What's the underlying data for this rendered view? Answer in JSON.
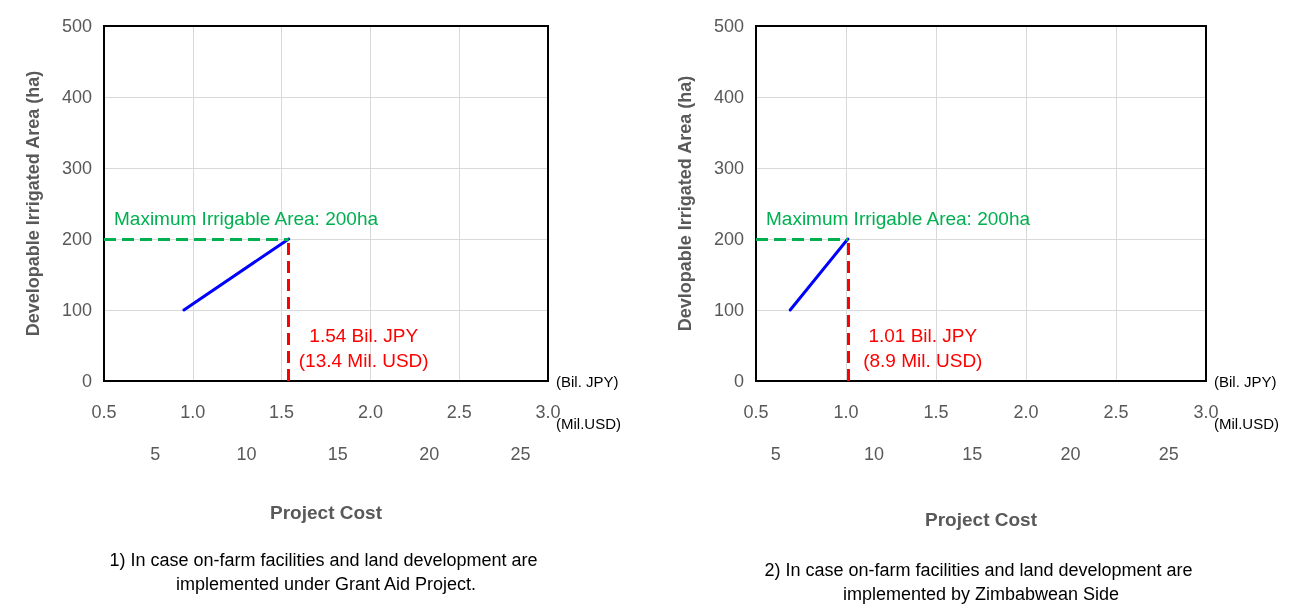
{
  "chart_data": [
    {
      "type": "line",
      "x": [
        0.95,
        1.54
      ],
      "values": [
        100,
        200
      ],
      "color": "#0000ff",
      "xlim": [
        0.5,
        3.0
      ],
      "xticks": [
        {
          "value": 0.5,
          "label": "0.5"
        },
        {
          "value": 1.0,
          "label": "1.0"
        },
        {
          "value": 1.5,
          "label": "1.5"
        },
        {
          "value": 2.0,
          "label": "2.0"
        },
        {
          "value": 2.5,
          "label": "2.5"
        },
        {
          "value": 3.0,
          "label": "3.0"
        }
      ],
      "xlabel": "(Bil. JPY)",
      "x2lim": [
        2.2,
        26.5
      ],
      "x2ticks": [
        5,
        10,
        15,
        20,
        25
      ],
      "x2label": "(Mil.USD)",
      "ylim": [
        0,
        500
      ],
      "yticks": [
        0,
        100,
        200,
        300,
        400,
        500
      ],
      "ylabel": "Developable Irrigated Area (ha)",
      "grid": true,
      "marker": "none",
      "line_style": "solid",
      "ref_lines": [
        {
          "axis": "y",
          "value": 200,
          "label": "Maximum Irrigable Area: 200ha",
          "color": "#00b050",
          "line_style": "dashed"
        },
        {
          "axis": "x",
          "value": 1.54,
          "label": "1.54 Bil. JPY\n(13.4 Mil. USD)",
          "color": "#ff0000",
          "line_style": "dashed"
        }
      ],
      "annotations": [
        "Project Cost",
        "1) In case on-farm facilities and land development are implemented under Grant Aid Project."
      ]
    },
    {
      "type": "line",
      "x": [
        0.69,
        1.01
      ],
      "values": [
        100,
        200
      ],
      "color": "#0000ff",
      "xlim": [
        0.5,
        3.0
      ],
      "xticks": [
        {
          "value": 0.5,
          "label": "0.5"
        },
        {
          "value": 1.0,
          "label": "1.0"
        },
        {
          "value": 1.5,
          "label": "1.5"
        },
        {
          "value": 2.0,
          "label": "2.0"
        },
        {
          "value": 2.5,
          "label": "2.5"
        },
        {
          "value": 3.0,
          "label": "3.0"
        }
      ],
      "xlabel": "(Bil. JPY)",
      "x2lim": [
        4.0,
        26.9
      ],
      "x2ticks": [
        5,
        10,
        15,
        20,
        25
      ],
      "x2label": "(Mil.USD)",
      "ylim": [
        0,
        500
      ],
      "yticks": [
        0,
        100,
        200,
        300,
        400,
        500
      ],
      "ylabel": "Devlopable Irrigated Area (ha)",
      "grid": true,
      "marker": "none",
      "line_style": "solid",
      "ref_lines": [
        {
          "axis": "y",
          "value": 200,
          "label": "Maximum Irrigable Area: 200ha",
          "color": "#00b050",
          "line_style": "dashed"
        },
        {
          "axis": "x",
          "value": 1.01,
          "label": "1.01 Bil. JPY\n(8.9 Mil. USD)",
          "color": "#ff0000",
          "line_style": "dashed"
        }
      ],
      "annotations": [
        "Project Cost",
        "2) In case on-farm facilities and land development are implemented by Zimbabwean Side"
      ]
    }
  ]
}
